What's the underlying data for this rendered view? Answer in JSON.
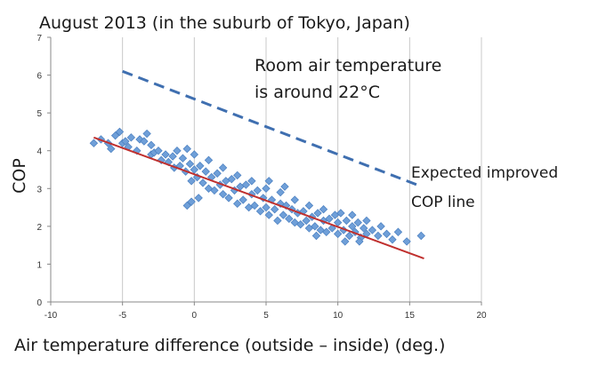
{
  "chart_data": {
    "type": "scatter",
    "title": "August 2013 (in the suburb of Tokyo, Japan)",
    "xlabel": "Air temperature difference (outside – inside)  (deg.)",
    "ylabel": "COP",
    "xlim": [
      -10,
      20
    ],
    "ylim": [
      0,
      7
    ],
    "xticks": [
      -10,
      -5,
      0,
      5,
      10,
      15,
      20
    ],
    "yticks": [
      0,
      1,
      2,
      3,
      4,
      5,
      6,
      7
    ],
    "xtick_labels": [
      "-10",
      "-5",
      "0",
      "5",
      "10",
      "15",
      "20"
    ],
    "ytick_labels": [
      "0",
      "1",
      "2",
      "3",
      "4",
      "5",
      "6",
      "7"
    ],
    "grid": "vertical",
    "annotations": {
      "room_line1": "Room air temperature",
      "room_line2": "is around 22°C",
      "expected_line1": "Expected improved",
      "expected_line2": "COP line"
    },
    "series": [
      {
        "kind": "scatter",
        "color": "#6f9fd8",
        "stroke": "#4a7fc0",
        "points": [
          [
            -7.0,
            4.2
          ],
          [
            -6.5,
            4.3
          ],
          [
            -6.0,
            4.2
          ],
          [
            -5.8,
            4.05
          ],
          [
            -5.5,
            4.4
          ],
          [
            -5.2,
            4.5
          ],
          [
            -5.0,
            4.2
          ],
          [
            -4.8,
            4.25
          ],
          [
            -4.6,
            4.1
          ],
          [
            -4.4,
            4.35
          ],
          [
            -4.0,
            4.0
          ],
          [
            -3.8,
            4.3
          ],
          [
            -3.5,
            4.25
          ],
          [
            -3.3,
            4.45
          ],
          [
            -3.0,
            4.15
          ],
          [
            -3.0,
            3.9
          ],
          [
            -2.8,
            3.95
          ],
          [
            -2.5,
            4.0
          ],
          [
            -2.3,
            3.75
          ],
          [
            -2.0,
            3.9
          ],
          [
            -1.8,
            3.7
          ],
          [
            -1.5,
            3.85
          ],
          [
            -1.4,
            3.55
          ],
          [
            -1.2,
            4.0
          ],
          [
            -1.0,
            3.6
          ],
          [
            -0.8,
            3.8
          ],
          [
            -0.6,
            3.45
          ],
          [
            -0.5,
            4.05
          ],
          [
            -0.3,
            3.65
          ],
          [
            -0.2,
            3.2
          ],
          [
            0.0,
            3.5
          ],
          [
            0.0,
            3.9
          ],
          [
            0.2,
            3.3
          ],
          [
            0.4,
            3.6
          ],
          [
            0.6,
            3.15
          ],
          [
            0.8,
            3.45
          ],
          [
            1.0,
            3.0
          ],
          [
            1.0,
            3.75
          ],
          [
            1.2,
            3.3
          ],
          [
            1.4,
            2.95
          ],
          [
            1.6,
            3.4
          ],
          [
            1.8,
            3.1
          ],
          [
            2.0,
            2.85
          ],
          [
            2.0,
            3.55
          ],
          [
            2.2,
            3.2
          ],
          [
            2.4,
            2.75
          ],
          [
            2.6,
            3.25
          ],
          [
            2.8,
            2.95
          ],
          [
            3.0,
            2.6
          ],
          [
            3.0,
            3.35
          ],
          [
            3.2,
            3.05
          ],
          [
            3.4,
            2.7
          ],
          [
            3.6,
            3.1
          ],
          [
            3.8,
            2.5
          ],
          [
            4.0,
            2.85
          ],
          [
            4.0,
            3.2
          ],
          [
            4.2,
            2.55
          ],
          [
            4.4,
            2.95
          ],
          [
            4.6,
            2.4
          ],
          [
            4.8,
            2.75
          ],
          [
            5.0,
            2.5
          ],
          [
            5.0,
            3.0
          ],
          [
            5.2,
            2.3
          ],
          [
            5.4,
            2.7
          ],
          [
            5.6,
            2.45
          ],
          [
            5.8,
            2.15
          ],
          [
            6.0,
            2.6
          ],
          [
            6.0,
            2.9
          ],
          [
            6.2,
            2.3
          ],
          [
            6.4,
            2.55
          ],
          [
            6.6,
            2.2
          ],
          [
            6.8,
            2.45
          ],
          [
            7.0,
            2.1
          ],
          [
            7.0,
            2.7
          ],
          [
            7.2,
            2.35
          ],
          [
            7.4,
            2.05
          ],
          [
            7.6,
            2.4
          ],
          [
            7.8,
            2.15
          ],
          [
            8.0,
            1.95
          ],
          [
            8.0,
            2.55
          ],
          [
            8.2,
            2.25
          ],
          [
            8.4,
            2.0
          ],
          [
            8.6,
            2.35
          ],
          [
            8.8,
            1.9
          ],
          [
            9.0,
            2.15
          ],
          [
            9.0,
            2.45
          ],
          [
            9.2,
            1.85
          ],
          [
            9.4,
            2.2
          ],
          [
            9.6,
            1.95
          ],
          [
            9.8,
            2.3
          ],
          [
            10.0,
            1.8
          ],
          [
            10.0,
            2.1
          ],
          [
            10.2,
            2.35
          ],
          [
            10.4,
            1.9
          ],
          [
            10.6,
            2.15
          ],
          [
            10.8,
            1.75
          ],
          [
            11.0,
            2.0
          ],
          [
            11.0,
            2.3
          ],
          [
            11.2,
            1.85
          ],
          [
            11.4,
            2.1
          ],
          [
            11.6,
            1.7
          ],
          [
            11.8,
            1.95
          ],
          [
            12.0,
            1.8
          ],
          [
            12.0,
            2.15
          ],
          [
            12.4,
            1.9
          ],
          [
            12.8,
            1.75
          ],
          [
            13.0,
            2.0
          ],
          [
            13.4,
            1.8
          ],
          [
            13.8,
            1.65
          ],
          [
            14.2,
            1.85
          ],
          [
            14.8,
            1.6
          ],
          [
            15.8,
            1.75
          ],
          [
            -0.5,
            2.55
          ],
          [
            -0.2,
            2.65
          ],
          [
            0.3,
            2.75
          ],
          [
            5.2,
            3.2
          ],
          [
            6.3,
            3.05
          ],
          [
            8.5,
            1.75
          ],
          [
            10.5,
            1.6
          ],
          [
            11.5,
            1.6
          ]
        ]
      },
      {
        "kind": "line",
        "color": "#c0302e",
        "points": [
          [
            -7.0,
            4.35
          ],
          [
            16.0,
            1.15
          ]
        ]
      },
      {
        "kind": "line",
        "dashed": true,
        "color": "#3f6fb0",
        "points": [
          [
            -5.0,
            6.1
          ],
          [
            15.5,
            3.1
          ]
        ]
      }
    ]
  }
}
